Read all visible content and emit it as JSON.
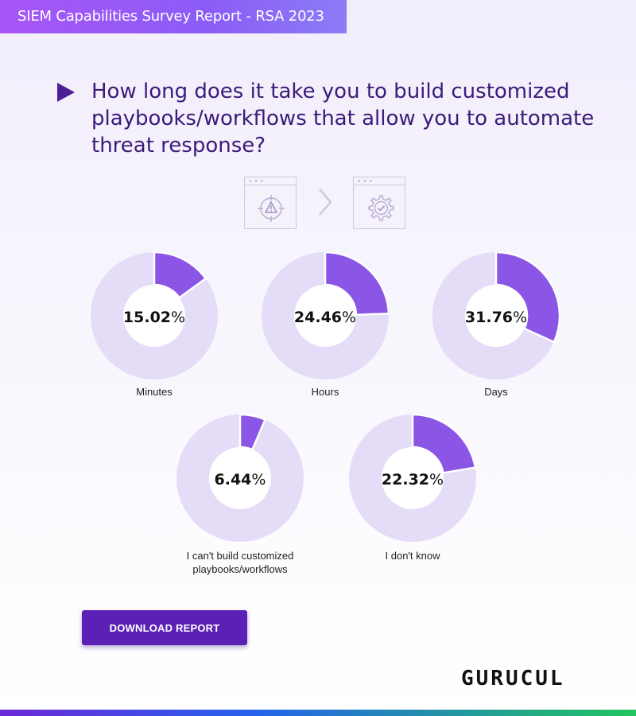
{
  "header": {
    "banner": "SIEM Capabilities Survey Report - RSA 2023"
  },
  "question": {
    "text": "How long does it take you to build customized playbooks/workflows that allow you to automate threat response?"
  },
  "icons": [
    "alert-target-icon",
    "chevron-right-icon",
    "gear-check-icon"
  ],
  "colors": {
    "accent": "#7c3aed",
    "slice": "#8b55e6",
    "ring": "#e5dcf8",
    "title": "#3b1a7a",
    "button": "#5b21b6"
  },
  "chart_data": {
    "type": "pie",
    "categories": [
      "Minutes",
      "Hours",
      "Days",
      "I can't build customized playbooks/workflows",
      "I don't know"
    ],
    "values": [
      15.02,
      24.46,
      31.76,
      6.44,
      22.32
    ],
    "value_labels": [
      "15.02",
      "24.46",
      "31.76",
      "6.44",
      "22.32"
    ],
    "unit": "%"
  },
  "cta": {
    "download_label": "DOWNLOAD REPORT"
  },
  "brand": {
    "logo_text": "GURUCUL"
  }
}
